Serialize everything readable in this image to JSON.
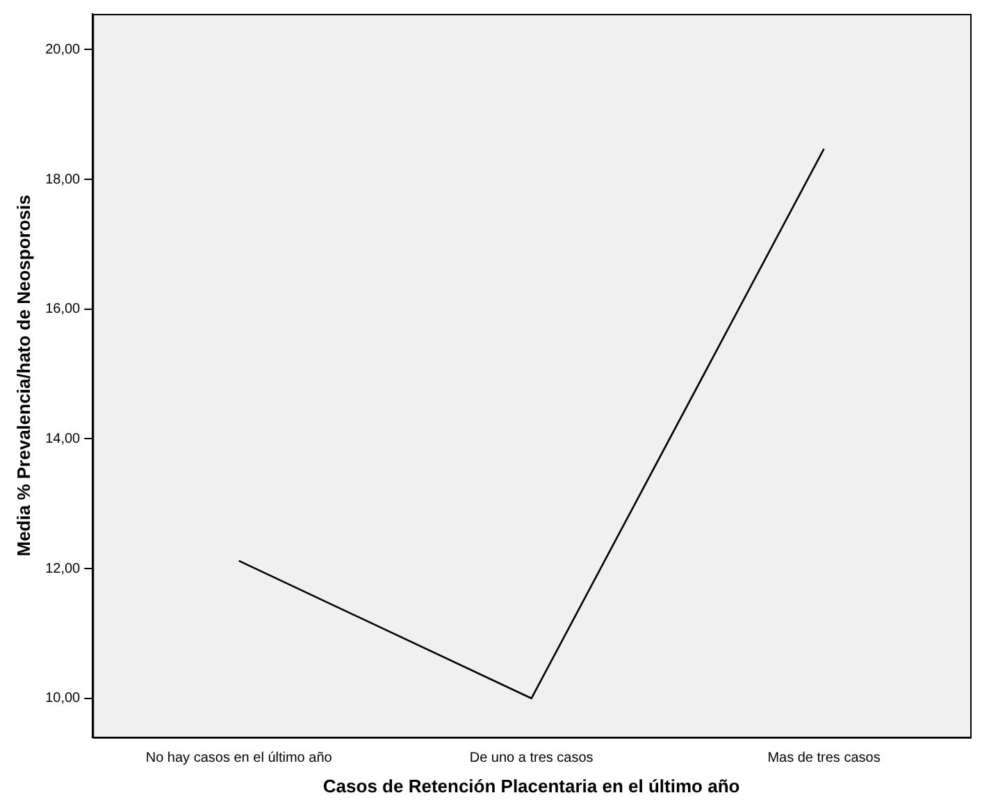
{
  "chart_data": {
    "type": "line",
    "xlabel": "Casos de Retención Placentaria en el último año",
    "ylabel": "Media % Prevalencia/hato de Neosporosis",
    "categories": [
      "No hay casos en el último año",
      "De uno a tres casos",
      "Mas de tres casos"
    ],
    "series": [
      {
        "color": "#000000",
        "values": [
          12.12,
          10.0,
          18.47
        ]
      }
    ],
    "ylim": [
      9.4,
      20.55
    ],
    "yticks": [
      {
        "value": 10,
        "label": "10,00"
      },
      {
        "value": 12,
        "label": "12,00"
      },
      {
        "value": 14,
        "label": "14,00"
      },
      {
        "value": 16,
        "label": "16,00"
      },
      {
        "value": 18,
        "label": "18,00"
      },
      {
        "value": 20,
        "label": "20,00"
      }
    ],
    "grid": false,
    "legend": false,
    "marker": "none",
    "line_style": "solid"
  }
}
